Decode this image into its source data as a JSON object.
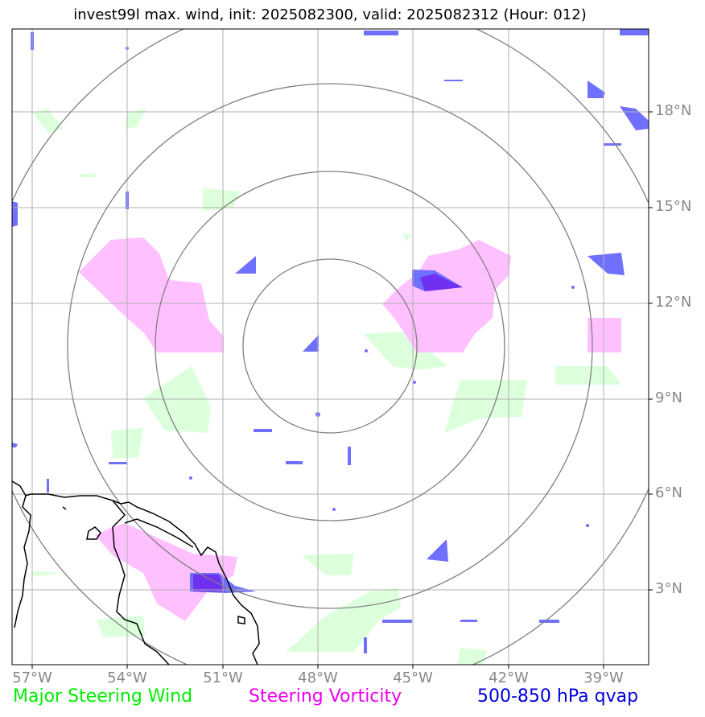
{
  "title": "invest99l max. wind, init: 2025082300, valid: 2025082312 (Hour: 012)",
  "lat_labels": [
    "18°N",
    "15°N",
    "12°N",
    "9°N",
    "6°N",
    "3°N"
  ],
  "lon_labels": [
    "57°W",
    "54°W",
    "51°W",
    "48°W",
    "45°W",
    "42°W",
    "39°W"
  ],
  "legend": {
    "wind": "Major Steering Wind",
    "vorticity": "Steering Vorticity",
    "qvap": "500-850 hPa qvap"
  },
  "colors": {
    "wind": "#dcffdc",
    "vorticity": "#ffc0ff",
    "qvap": "#7070ff",
    "qvap_dark": "#7030f0",
    "grid": "#b0b0b0",
    "rings": "#808080"
  }
}
